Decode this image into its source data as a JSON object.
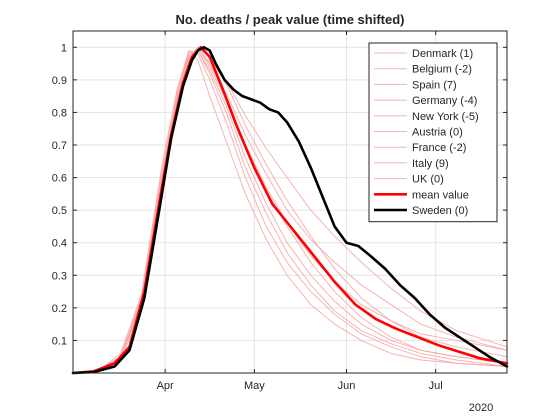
{
  "chart_data": {
    "type": "line",
    "title": "No. deaths / peak value (time shifted)",
    "xlabel": "",
    "ylabel": "",
    "x_year_label": "2020",
    "xlim": [
      "2020-03-01",
      "2020-07-25"
    ],
    "ylim": [
      0,
      1.05
    ],
    "x_ticks": [
      {
        "date": "2020-04-01",
        "label": "Apr"
      },
      {
        "date": "2020-05-01",
        "label": "May"
      },
      {
        "date": "2020-06-01",
        "label": "Jun"
      },
      {
        "date": "2020-07-01",
        "label": "Jul"
      }
    ],
    "y_ticks": [
      0.1,
      0.2,
      0.3,
      0.4,
      0.5,
      0.6,
      0.7,
      0.8,
      0.9,
      1
    ],
    "y_tick_labels": [
      "0.1",
      "0.2",
      "0.3",
      "0.4",
      "0.5",
      "0.6",
      "0.7",
      "0.8",
      "0.9",
      "1"
    ],
    "grid": true,
    "legend_position": "top-right",
    "colors": {
      "country_lines": "#f7a6a6",
      "mean_value": "#ff0000",
      "sweden": "#000000",
      "grid": "#e3e3e3",
      "axes": "#262626"
    },
    "series": [
      {
        "name": "Denmark (1)",
        "style": "thin",
        "points": [
          [
            "2020-03-01",
            0
          ],
          [
            "2020-03-10",
            0.01
          ],
          [
            "2020-03-17",
            0.05
          ],
          [
            "2020-03-24",
            0.2
          ],
          [
            "2020-03-31",
            0.58
          ],
          [
            "2020-04-05",
            0.82
          ],
          [
            "2020-04-09",
            0.97
          ],
          [
            "2020-04-12",
            1
          ],
          [
            "2020-04-16",
            0.95
          ],
          [
            "2020-04-22",
            0.84
          ],
          [
            "2020-04-28",
            0.7
          ],
          [
            "2020-05-05",
            0.56
          ],
          [
            "2020-05-12",
            0.45
          ],
          [
            "2020-05-20",
            0.34
          ],
          [
            "2020-05-28",
            0.25
          ],
          [
            "2020-06-06",
            0.17
          ],
          [
            "2020-06-16",
            0.11
          ],
          [
            "2020-06-26",
            0.07
          ],
          [
            "2020-07-08",
            0.05
          ],
          [
            "2020-07-25",
            0.03
          ]
        ]
      },
      {
        "name": "Belgium (-2)",
        "style": "thin",
        "points": [
          [
            "2020-03-01",
            0
          ],
          [
            "2020-03-10",
            0.01
          ],
          [
            "2020-03-17",
            0.06
          ],
          [
            "2020-03-24",
            0.24
          ],
          [
            "2020-03-31",
            0.64
          ],
          [
            "2020-04-05",
            0.87
          ],
          [
            "2020-04-09",
            0.99
          ],
          [
            "2020-04-12",
            0.98
          ],
          [
            "2020-04-16",
            0.9
          ],
          [
            "2020-04-22",
            0.76
          ],
          [
            "2020-04-28",
            0.6
          ],
          [
            "2020-05-05",
            0.45
          ],
          [
            "2020-05-12",
            0.34
          ],
          [
            "2020-05-20",
            0.25
          ],
          [
            "2020-05-28",
            0.18
          ],
          [
            "2020-06-06",
            0.12
          ],
          [
            "2020-06-16",
            0.08
          ],
          [
            "2020-06-26",
            0.05
          ],
          [
            "2020-07-08",
            0.03
          ],
          [
            "2020-07-25",
            0.02
          ]
        ]
      },
      {
        "name": "Spain (7)",
        "style": "thin",
        "points": [
          [
            "2020-03-01",
            0
          ],
          [
            "2020-03-10",
            0.01
          ],
          [
            "2020-03-17",
            0.05
          ],
          [
            "2020-03-24",
            0.22
          ],
          [
            "2020-03-31",
            0.6
          ],
          [
            "2020-04-05",
            0.84
          ],
          [
            "2020-04-09",
            0.98
          ],
          [
            "2020-04-12",
            0.99
          ],
          [
            "2020-04-16",
            0.93
          ],
          [
            "2020-04-22",
            0.81
          ],
          [
            "2020-04-28",
            0.66
          ],
          [
            "2020-05-05",
            0.52
          ],
          [
            "2020-05-12",
            0.4
          ],
          [
            "2020-05-20",
            0.3
          ],
          [
            "2020-05-28",
            0.22
          ],
          [
            "2020-06-06",
            0.15
          ],
          [
            "2020-06-16",
            0.1
          ],
          [
            "2020-06-26",
            0.07
          ],
          [
            "2020-07-08",
            0.05
          ],
          [
            "2020-07-25",
            0.03
          ]
        ]
      },
      {
        "name": "Germany (-4)",
        "style": "thin",
        "points": [
          [
            "2020-03-01",
            0
          ],
          [
            "2020-03-10",
            0.01
          ],
          [
            "2020-03-17",
            0.04
          ],
          [
            "2020-03-24",
            0.19
          ],
          [
            "2020-03-31",
            0.56
          ],
          [
            "2020-04-05",
            0.8
          ],
          [
            "2020-04-09",
            0.94
          ],
          [
            "2020-04-12",
            1
          ],
          [
            "2020-04-16",
            0.97
          ],
          [
            "2020-04-22",
            0.88
          ],
          [
            "2020-04-28",
            0.76
          ],
          [
            "2020-05-05",
            0.64
          ],
          [
            "2020-05-12",
            0.53
          ],
          [
            "2020-05-20",
            0.42
          ],
          [
            "2020-05-28",
            0.32
          ],
          [
            "2020-06-06",
            0.23
          ],
          [
            "2020-06-16",
            0.16
          ],
          [
            "2020-06-26",
            0.11
          ],
          [
            "2020-07-08",
            0.08
          ],
          [
            "2020-07-25",
            0.05
          ]
        ]
      },
      {
        "name": "New York (-5)",
        "style": "thin",
        "points": [
          [
            "2020-03-01",
            0
          ],
          [
            "2020-03-10",
            0.01
          ],
          [
            "2020-03-17",
            0.05
          ],
          [
            "2020-03-24",
            0.23
          ],
          [
            "2020-03-31",
            0.62
          ],
          [
            "2020-04-05",
            0.86
          ],
          [
            "2020-04-09",
            0.98
          ],
          [
            "2020-04-12",
            0.99
          ],
          [
            "2020-04-16",
            0.92
          ],
          [
            "2020-04-22",
            0.79
          ],
          [
            "2020-04-28",
            0.63
          ],
          [
            "2020-05-05",
            0.49
          ],
          [
            "2020-05-12",
            0.37
          ],
          [
            "2020-05-20",
            0.27
          ],
          [
            "2020-05-28",
            0.19
          ],
          [
            "2020-06-06",
            0.13
          ],
          [
            "2020-06-16",
            0.09
          ],
          [
            "2020-06-26",
            0.06
          ],
          [
            "2020-07-08",
            0.04
          ],
          [
            "2020-07-25",
            0.02
          ]
        ]
      },
      {
        "name": "Austria (0)",
        "style": "thin",
        "points": [
          [
            "2020-03-01",
            0
          ],
          [
            "2020-03-10",
            0.01
          ],
          [
            "2020-03-17",
            0.05
          ],
          [
            "2020-03-24",
            0.21
          ],
          [
            "2020-03-31",
            0.59
          ],
          [
            "2020-04-05",
            0.85
          ],
          [
            "2020-04-09",
            0.99
          ],
          [
            "2020-04-12",
            0.96
          ],
          [
            "2020-04-16",
            0.85
          ],
          [
            "2020-04-22",
            0.7
          ],
          [
            "2020-04-28",
            0.55
          ],
          [
            "2020-05-05",
            0.41
          ],
          [
            "2020-05-12",
            0.3
          ],
          [
            "2020-05-20",
            0.21
          ],
          [
            "2020-05-28",
            0.15
          ],
          [
            "2020-06-06",
            0.1
          ],
          [
            "2020-06-16",
            0.06
          ],
          [
            "2020-06-26",
            0.04
          ],
          [
            "2020-07-08",
            0.03
          ],
          [
            "2020-07-25",
            0.02
          ]
        ]
      },
      {
        "name": "France (-2)",
        "style": "thin",
        "points": [
          [
            "2020-03-01",
            0
          ],
          [
            "2020-03-10",
            0.01
          ],
          [
            "2020-03-17",
            0.05
          ],
          [
            "2020-03-24",
            0.22
          ],
          [
            "2020-03-31",
            0.61
          ],
          [
            "2020-04-05",
            0.84
          ],
          [
            "2020-04-09",
            0.97
          ],
          [
            "2020-04-12",
            1
          ],
          [
            "2020-04-16",
            0.94
          ],
          [
            "2020-04-22",
            0.83
          ],
          [
            "2020-04-28",
            0.7
          ],
          [
            "2020-05-05",
            0.57
          ],
          [
            "2020-05-12",
            0.46
          ],
          [
            "2020-05-20",
            0.36
          ],
          [
            "2020-05-28",
            0.28
          ],
          [
            "2020-06-06",
            0.21
          ],
          [
            "2020-06-16",
            0.16
          ],
          [
            "2020-06-26",
            0.12
          ],
          [
            "2020-07-08",
            0.1
          ],
          [
            "2020-07-25",
            0.07
          ]
        ]
      },
      {
        "name": "Italy (9)",
        "style": "thin",
        "points": [
          [
            "2020-03-01",
            0
          ],
          [
            "2020-03-10",
            0.01
          ],
          [
            "2020-03-17",
            0.05
          ],
          [
            "2020-03-24",
            0.22
          ],
          [
            "2020-03-31",
            0.6
          ],
          [
            "2020-04-05",
            0.83
          ],
          [
            "2020-04-09",
            0.96
          ],
          [
            "2020-04-12",
            1
          ],
          [
            "2020-04-16",
            0.97
          ],
          [
            "2020-04-22",
            0.89
          ],
          [
            "2020-04-28",
            0.79
          ],
          [
            "2020-05-05",
            0.69
          ],
          [
            "2020-05-12",
            0.6
          ],
          [
            "2020-05-20",
            0.5
          ],
          [
            "2020-05-28",
            0.42
          ],
          [
            "2020-06-06",
            0.34
          ],
          [
            "2020-06-16",
            0.26
          ],
          [
            "2020-06-26",
            0.19
          ],
          [
            "2020-07-08",
            0.13
          ],
          [
            "2020-07-25",
            0.08
          ]
        ]
      },
      {
        "name": "UK (0)",
        "style": "thin",
        "points": [
          [
            "2020-03-01",
            0
          ],
          [
            "2020-03-10",
            0.01
          ],
          [
            "2020-03-17",
            0.05
          ],
          [
            "2020-03-24",
            0.21
          ],
          [
            "2020-03-31",
            0.58
          ],
          [
            "2020-04-05",
            0.83
          ],
          [
            "2020-04-09",
            0.96
          ],
          [
            "2020-04-12",
            1
          ],
          [
            "2020-04-16",
            0.95
          ],
          [
            "2020-04-22",
            0.85
          ],
          [
            "2020-04-28",
            0.73
          ],
          [
            "2020-05-05",
            0.61
          ],
          [
            "2020-05-12",
            0.5
          ],
          [
            "2020-05-20",
            0.41
          ],
          [
            "2020-05-28",
            0.34
          ],
          [
            "2020-06-06",
            0.27
          ],
          [
            "2020-06-16",
            0.21
          ],
          [
            "2020-06-26",
            0.15
          ],
          [
            "2020-07-08",
            0.11
          ],
          [
            "2020-07-25",
            0.07
          ]
        ]
      },
      {
        "name": "mean value",
        "style": "mean",
        "points": [
          [
            "2020-03-01",
            0
          ],
          [
            "2020-03-08",
            0.005
          ],
          [
            "2020-03-15",
            0.03
          ],
          [
            "2020-03-20",
            0.08
          ],
          [
            "2020-03-25",
            0.25
          ],
          [
            "2020-03-30",
            0.52
          ],
          [
            "2020-04-03",
            0.73
          ],
          [
            "2020-04-07",
            0.89
          ],
          [
            "2020-04-10",
            0.97
          ],
          [
            "2020-04-13",
            1
          ],
          [
            "2020-04-16",
            0.97
          ],
          [
            "2020-04-20",
            0.88
          ],
          [
            "2020-04-25",
            0.76
          ],
          [
            "2020-05-01",
            0.63
          ],
          [
            "2020-05-07",
            0.52
          ],
          [
            "2020-05-14",
            0.44
          ],
          [
            "2020-05-21",
            0.36
          ],
          [
            "2020-05-28",
            0.28
          ],
          [
            "2020-06-04",
            0.21
          ],
          [
            "2020-06-11",
            0.165
          ],
          [
            "2020-06-18",
            0.135
          ],
          [
            "2020-06-25",
            0.11
          ],
          [
            "2020-07-02",
            0.085
          ],
          [
            "2020-07-09",
            0.065
          ],
          [
            "2020-07-16",
            0.045
          ],
          [
            "2020-07-22",
            0.035
          ],
          [
            "2020-07-25",
            0.03
          ]
        ]
      },
      {
        "name": "Sweden (0)",
        "style": "sweden",
        "points": [
          [
            "2020-03-01",
            0
          ],
          [
            "2020-03-08",
            0.003
          ],
          [
            "2020-03-15",
            0.02
          ],
          [
            "2020-03-20",
            0.07
          ],
          [
            "2020-03-25",
            0.23
          ],
          [
            "2020-03-30",
            0.5
          ],
          [
            "2020-04-03",
            0.72
          ],
          [
            "2020-04-07",
            0.88
          ],
          [
            "2020-04-10",
            0.96
          ],
          [
            "2020-04-12",
            0.99
          ],
          [
            "2020-04-14",
            1
          ],
          [
            "2020-04-16",
            0.99
          ],
          [
            "2020-04-18",
            0.95
          ],
          [
            "2020-04-21",
            0.9
          ],
          [
            "2020-04-24",
            0.87
          ],
          [
            "2020-04-27",
            0.85
          ],
          [
            "2020-04-30",
            0.84
          ],
          [
            "2020-05-03",
            0.83
          ],
          [
            "2020-05-06",
            0.81
          ],
          [
            "2020-05-09",
            0.8
          ],
          [
            "2020-05-12",
            0.77
          ],
          [
            "2020-05-16",
            0.71
          ],
          [
            "2020-05-20",
            0.63
          ],
          [
            "2020-05-24",
            0.54
          ],
          [
            "2020-05-28",
            0.45
          ],
          [
            "2020-06-01",
            0.4
          ],
          [
            "2020-06-05",
            0.39
          ],
          [
            "2020-06-09",
            0.36
          ],
          [
            "2020-06-14",
            0.32
          ],
          [
            "2020-06-19",
            0.27
          ],
          [
            "2020-06-24",
            0.23
          ],
          [
            "2020-06-29",
            0.18
          ],
          [
            "2020-07-04",
            0.14
          ],
          [
            "2020-07-09",
            0.11
          ],
          [
            "2020-07-14",
            0.08
          ],
          [
            "2020-07-19",
            0.05
          ],
          [
            "2020-07-25",
            0.02
          ]
        ]
      }
    ]
  }
}
